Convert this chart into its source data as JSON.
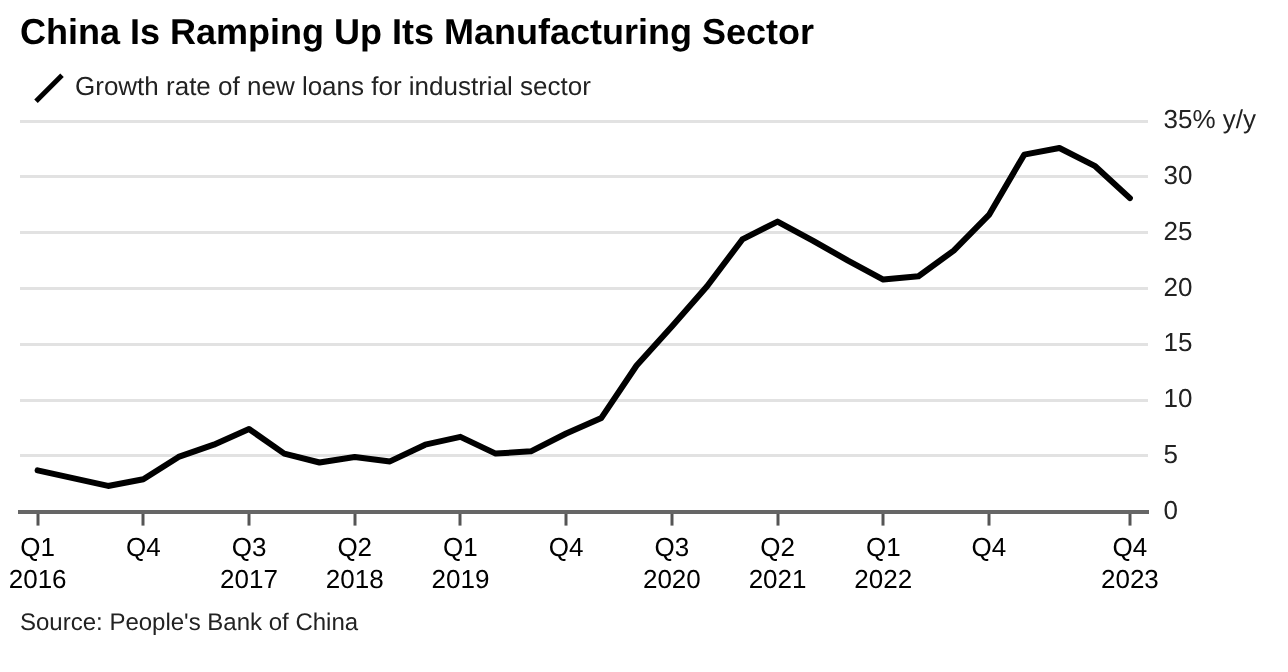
{
  "chart_data": {
    "type": "line",
    "title": "China Is Ramping Up Its Manufacturing Sector",
    "categories": [
      "Q1 2016",
      null,
      null,
      "Q4",
      null,
      null,
      "Q3 2017",
      null,
      null,
      "Q2 2018",
      null,
      null,
      "Q1 2019",
      null,
      null,
      "Q4",
      null,
      null,
      "Q3 2020",
      null,
      null,
      "Q2 2021",
      null,
      null,
      "Q1 2022",
      null,
      null,
      "Q4",
      null,
      null,
      null,
      "Q4 2023"
    ],
    "series": [
      {
        "name": "Growth rate of new loans for industrial sector",
        "color": "#000000",
        "values": [
          3.7,
          3.0,
          2.3,
          2.9,
          4.9,
          6.0,
          7.4,
          5.2,
          4.4,
          4.9,
          4.5,
          6.0,
          6.7,
          5.2,
          5.4,
          7.0,
          8.4,
          13.1,
          16.6,
          20.2,
          24.4,
          26.0,
          24.3,
          22.5,
          20.8,
          21.1,
          23.4,
          26.6,
          32.0,
          32.6,
          31.0,
          28.1
        ]
      }
    ],
    "ylim": [
      0,
      35
    ],
    "yticks": [
      0,
      5,
      10,
      15,
      20,
      25,
      30,
      {
        "value": 35,
        "label": "35% y/y"
      }
    ],
    "grid": "y",
    "legend": "top left",
    "marker": "none",
    "line_style": "solid",
    "annotations": [
      "Source: People's Bank of China"
    ]
  }
}
